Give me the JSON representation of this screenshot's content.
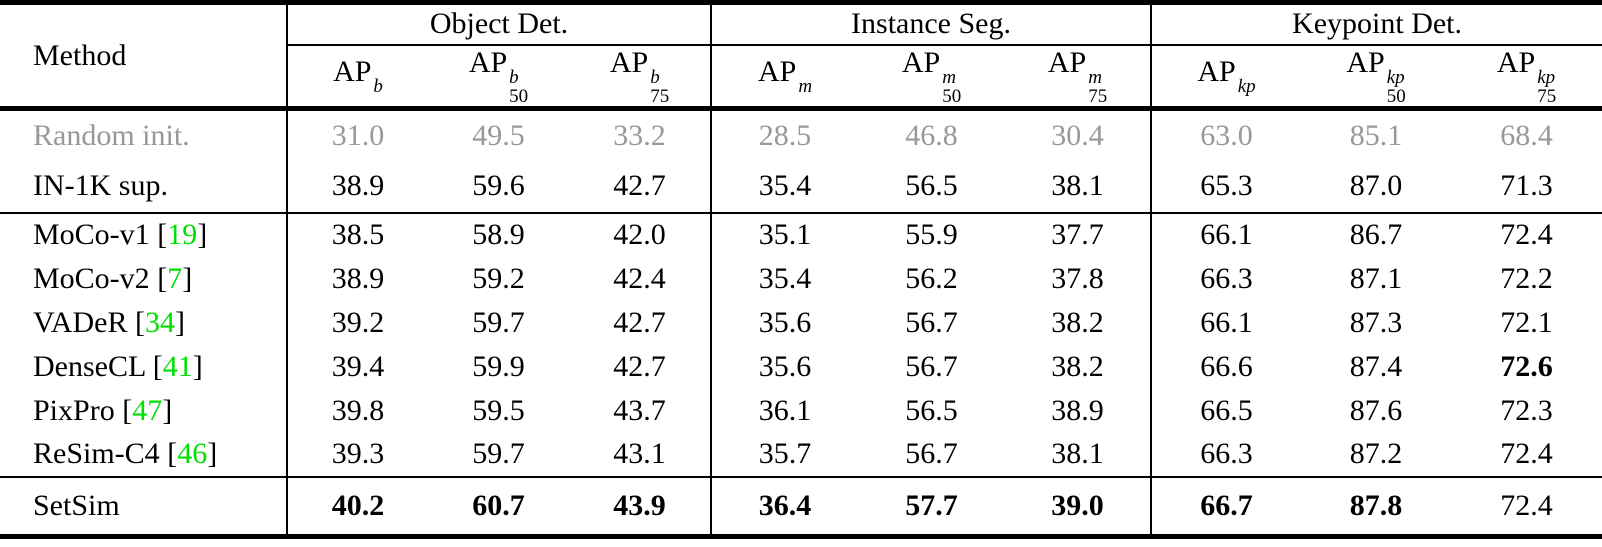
{
  "colors": {
    "citation_green": "#00e000",
    "muted_gray": "#989898",
    "rule_black": "#000000"
  },
  "table": {
    "method_header": "Method",
    "groups": [
      {
        "label": "Object Det."
      },
      {
        "label": "Instance Seg."
      },
      {
        "label": "Keypoint Det."
      }
    ],
    "subcols": [
      {
        "base": "AP",
        "sup": "b",
        "sub": ""
      },
      {
        "base": "AP",
        "sup": "b",
        "sub": "50"
      },
      {
        "base": "AP",
        "sup": "b",
        "sub": "75"
      },
      {
        "base": "AP",
        "sup": "m",
        "sub": ""
      },
      {
        "base": "AP",
        "sup": "m",
        "sub": "50"
      },
      {
        "base": "AP",
        "sup": "m",
        "sub": "75"
      },
      {
        "base": "AP",
        "sup": "kp",
        "sub": ""
      },
      {
        "base": "AP",
        "sup": "kp",
        "sub": "50"
      },
      {
        "base": "AP",
        "sup": "kp",
        "sub": "75"
      }
    ],
    "sections": [
      {
        "rows": [
          {
            "method": "Random init.",
            "cite": "",
            "muted": true,
            "values": [
              "31.0",
              "49.5",
              "33.2",
              "28.5",
              "46.8",
              "30.4",
              "63.0",
              "85.1",
              "68.4"
            ],
            "bold": []
          },
          {
            "method": "IN-1K sup.",
            "cite": "",
            "muted": false,
            "values": [
              "38.9",
              "59.6",
              "42.7",
              "35.4",
              "56.5",
              "38.1",
              "65.3",
              "87.0",
              "71.3"
            ],
            "bold": []
          }
        ]
      },
      {
        "rows": [
          {
            "method": "MoCo-v1",
            "cite": "19",
            "muted": false,
            "values": [
              "38.5",
              "58.9",
              "42.0",
              "35.1",
              "55.9",
              "37.7",
              "66.1",
              "86.7",
              "72.4"
            ],
            "bold": []
          },
          {
            "method": "MoCo-v2",
            "cite": "7",
            "muted": false,
            "values": [
              "38.9",
              "59.2",
              "42.4",
              "35.4",
              "56.2",
              "37.8",
              "66.3",
              "87.1",
              "72.2"
            ],
            "bold": []
          },
          {
            "method": "VADeR",
            "cite": "34",
            "muted": false,
            "values": [
              "39.2",
              "59.7",
              "42.7",
              "35.6",
              "56.7",
              "38.2",
              "66.1",
              "87.3",
              "72.1"
            ],
            "bold": []
          },
          {
            "method": "DenseCL",
            "cite": "41",
            "muted": false,
            "values": [
              "39.4",
              "59.9",
              "42.7",
              "35.6",
              "56.7",
              "38.2",
              "66.6",
              "87.4",
              "72.6"
            ],
            "bold": [
              8
            ]
          },
          {
            "method": "PixPro",
            "cite": "47",
            "muted": false,
            "values": [
              "39.8",
              "59.5",
              "43.7",
              "36.1",
              "56.5",
              "38.9",
              "66.5",
              "87.6",
              "72.3"
            ],
            "bold": []
          },
          {
            "method": "ReSim-C4",
            "cite": "46",
            "muted": false,
            "values": [
              "39.3",
              "59.7",
              "43.1",
              "35.7",
              "56.7",
              "38.1",
              "66.3",
              "87.2",
              "72.4"
            ],
            "bold": []
          }
        ]
      },
      {
        "rows": [
          {
            "method": "SetSim",
            "cite": "",
            "muted": false,
            "values": [
              "40.2",
              "60.7",
              "43.9",
              "36.4",
              "57.7",
              "39.0",
              "66.7",
              "87.8",
              "72.4"
            ],
            "bold": [
              0,
              1,
              2,
              3,
              4,
              5,
              6,
              7
            ]
          }
        ]
      }
    ]
  }
}
